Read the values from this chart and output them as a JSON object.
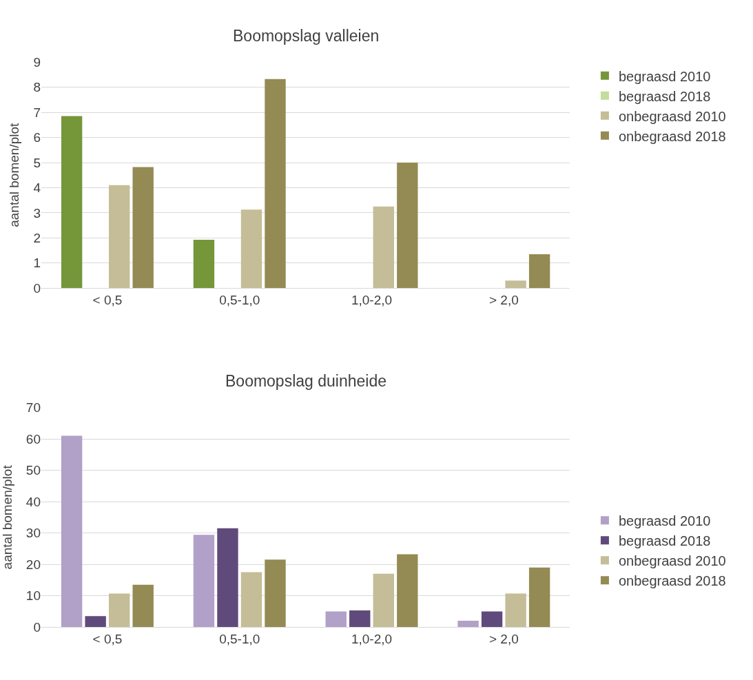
{
  "chart_data": [
    {
      "type": "bar",
      "title": "Boomopslag valleien",
      "ylabel": "aantal bomen/plot",
      "categories": [
        "< 0,5",
        "0,5-1,0",
        "1,0-2,0",
        "> 2,0"
      ],
      "ylim": [
        0,
        9
      ],
      "yticks": [
        0,
        1,
        2,
        3,
        4,
        5,
        6,
        7,
        8,
        9
      ],
      "grid": "y",
      "legend": "top right",
      "series": [
        {
          "name": "begraasd 2010",
          "color": "#76963a",
          "values": [
            6.85,
            1.93,
            0,
            0
          ]
        },
        {
          "name": "begraasd 2018",
          "color": "#c4dc9c",
          "values": [
            0,
            0,
            0,
            0
          ]
        },
        {
          "name": "onbegraasd 2010",
          "color": "#c4bd97",
          "values": [
            4.1,
            3.13,
            3.25,
            0.3
          ]
        },
        {
          "name": "onbegraasd 2018",
          "color": "#948a54",
          "values": [
            4.82,
            8.33,
            5.0,
            1.35
          ]
        }
      ]
    },
    {
      "type": "bar",
      "title": "Boomopslag duinheide",
      "ylabel": "aantal bomen/plot",
      "categories": [
        "< 0,5",
        "0,5-1,0",
        "1,0-2,0",
        "> 2,0"
      ],
      "ylim": [
        0,
        70
      ],
      "yticks": [
        0,
        10,
        20,
        30,
        40,
        50,
        60,
        70
      ],
      "grid": "y",
      "legend": "right",
      "series": [
        {
          "name": "begraasd 2010",
          "color": "#b1a0c7",
          "values": [
            61,
            29.4,
            5,
            2
          ]
        },
        {
          "name": "begraasd 2018",
          "color": "#604a7b",
          "values": [
            3.5,
            31.5,
            5.3,
            5
          ]
        },
        {
          "name": "onbegraasd 2010",
          "color": "#c4bd97",
          "values": [
            10.7,
            17.5,
            17,
            10.7
          ]
        },
        {
          "name": "onbegraasd 2018",
          "color": "#948a54",
          "values": [
            13.5,
            21.5,
            23.2,
            19
          ]
        }
      ]
    }
  ]
}
